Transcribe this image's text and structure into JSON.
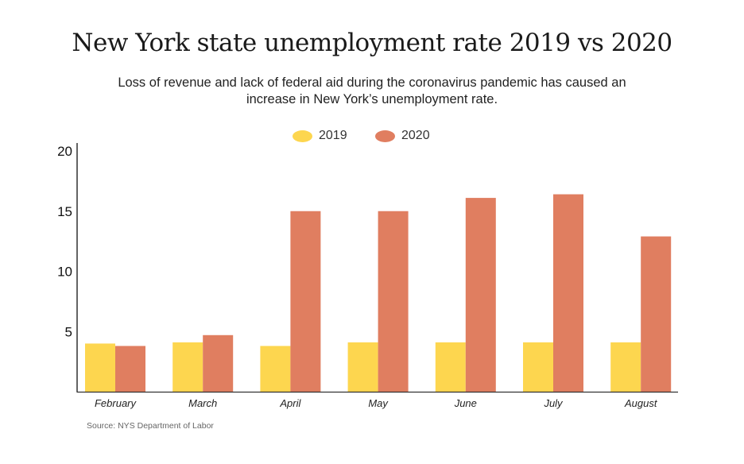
{
  "chart_data": {
    "type": "bar",
    "title": "New York state unemployment rate 2019 vs 2020",
    "subtitle": "Loss of revenue and lack of federal aid during the coronavirus pandemic has caused an increase in New York’s unemployment rate.",
    "categories": [
      "February",
      "March",
      "April",
      "May",
      "June",
      "July",
      "August"
    ],
    "series": [
      {
        "name": "2019",
        "color": "#FDD64F",
        "values": [
          4.0,
          4.1,
          3.8,
          4.1,
          4.1,
          4.1,
          4.1
        ]
      },
      {
        "name": "2020",
        "color": "#E07E60",
        "values": [
          3.8,
          4.7,
          15.0,
          15.0,
          16.1,
          16.4,
          12.9
        ]
      }
    ],
    "xlabel": "",
    "ylabel": "",
    "ylim": [
      0,
      20
    ],
    "yticks": [
      5,
      10,
      15,
      20
    ],
    "ytick_labels": [
      "5",
      "10",
      "15",
      "20"
    ],
    "grid": false,
    "legend_position": "top-center",
    "source": "Source: NYS Department of Labor"
  }
}
